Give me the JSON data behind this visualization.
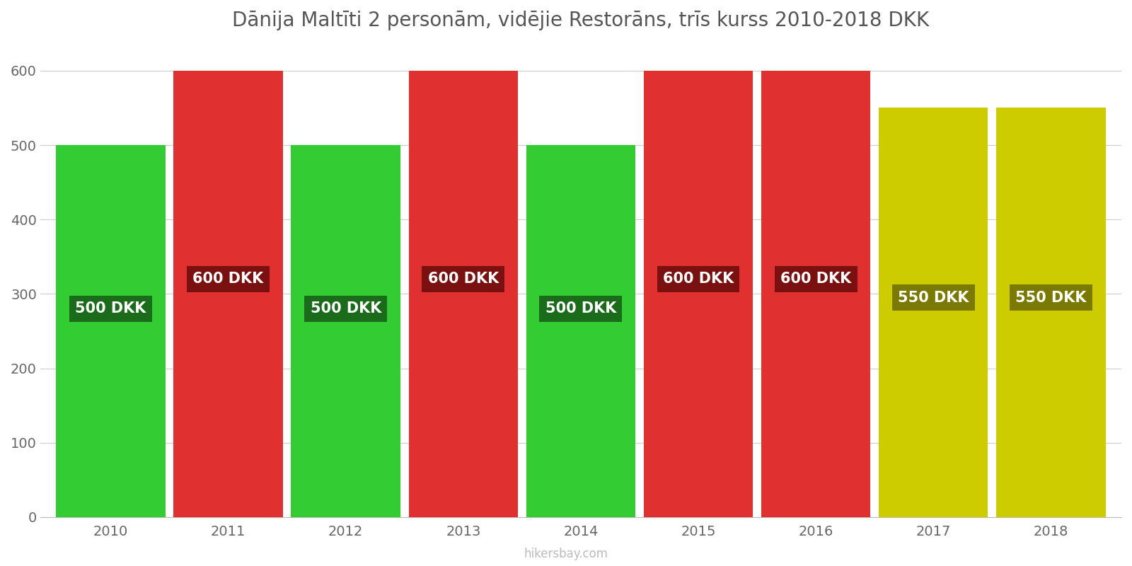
{
  "title": "Dānija Maltīti 2 personām, vidējie Restorāns, trīs kurss 2010-2018 DKK",
  "years": [
    2010,
    2011,
    2012,
    2013,
    2014,
    2015,
    2016,
    2017,
    2018
  ],
  "values": [
    500,
    600,
    500,
    600,
    500,
    600,
    600,
    550,
    550
  ],
  "bar_colors": [
    "#33cc33",
    "#e03030",
    "#33cc33",
    "#e03030",
    "#33cc33",
    "#e03030",
    "#e03030",
    "#cccc00",
    "#cccc00"
  ],
  "label_bg_colors": [
    "#1a6b1a",
    "#7a1010",
    "#1a6b1a",
    "#7a1010",
    "#1a6b1a",
    "#7a1010",
    "#7a1010",
    "#7a7a00",
    "#7a7a00"
  ],
  "label_y_positions": [
    280,
    320,
    280,
    320,
    280,
    320,
    320,
    295,
    295
  ],
  "ylim": [
    0,
    640
  ],
  "yticks": [
    0,
    100,
    200,
    300,
    400,
    500,
    600
  ],
  "watermark": "hikersbay.com",
  "bg_color": "#ffffff",
  "title_fontsize": 20,
  "tick_fontsize": 14,
  "label_fontsize": 15,
  "bar_width": 0.93
}
